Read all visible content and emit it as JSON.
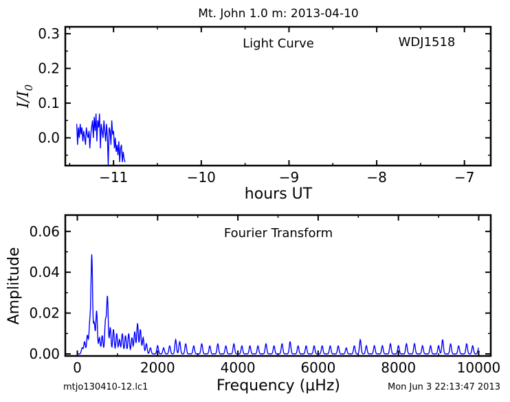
{
  "title": "Mt. John 1.0 m:  2013-04-10",
  "footer_left": "mtjo130410-12.lc1",
  "footer_right": "Mon Jun  3 22:13:47 2013",
  "chart_data": [
    {
      "type": "line",
      "annotation": "Light Curve",
      "object_label": "WDJ1518",
      "xlabel": "hours UT",
      "ylabel": "I/I0",
      "xlim": [
        -11.55,
        -6.7
      ],
      "ylim": [
        -0.08,
        0.32
      ],
      "xticks": [
        -11,
        -10,
        -9,
        -8,
        -7
      ],
      "xtick_labels": [
        "−11",
        "−10",
        "−9",
        "−8",
        "−7"
      ],
      "yticks": [
        0.0,
        0.1,
        0.2,
        0.3
      ],
      "ytick_labels": [
        "0.0",
        "0.1",
        "0.2",
        "0.3"
      ],
      "color": "#0000ff",
      "series": [
        {
          "x": [
            -11.42,
            -11.41,
            -11.4,
            -11.39,
            -11.38,
            -11.37,
            -11.36,
            -11.35,
            -11.34,
            -11.33,
            -11.32,
            -11.31,
            -11.3,
            -11.29,
            -11.28,
            -11.27,
            -11.26,
            -11.25,
            -11.24,
            -11.23,
            -11.22,
            -11.21,
            -11.2,
            -11.19,
            -11.18,
            -11.17,
            -11.16,
            -11.15,
            -11.14,
            -11.13,
            -11.12,
            -11.11,
            -11.1,
            -11.09,
            -11.08,
            -11.07,
            -11.06,
            -11.05,
            -11.04,
            -11.03,
            -11.02,
            -11.01,
            -11.0,
            -10.99,
            -10.98,
            -10.97,
            -10.96,
            -10.95,
            -10.94,
            -10.93,
            -10.92,
            -10.91,
            -10.9,
            -10.89,
            -10.88,
            -10.87
          ],
          "y": [
            0.04,
            -0.02,
            0.03,
            0.0,
            0.04,
            0.01,
            0.03,
            -0.01,
            0.02,
            0.0,
            -0.02,
            0.03,
            0.01,
            0.0,
            0.02,
            -0.03,
            0.01,
            0.03,
            0.05,
            0.0,
            0.06,
            0.02,
            0.07,
            -0.01,
            0.05,
            0.03,
            0.07,
            -0.03,
            0.04,
            0.02,
            0.0,
            0.05,
            0.02,
            -0.01,
            0.04,
            0.0,
            -0.08,
            0.03,
            0.02,
            -0.02,
            0.05,
            0.01,
            0.02,
            -0.03,
            0.0,
            -0.04,
            -0.02,
            -0.05,
            -0.01,
            -0.07,
            -0.03,
            -0.02,
            -0.07,
            -0.04,
            -0.06,
            -0.07
          ]
        }
      ]
    },
    {
      "type": "line",
      "annotation": "Fourier Transform",
      "xlabel": "Frequency (μHz)",
      "ylabel": "Amplitude",
      "xlim": [
        -300,
        10300
      ],
      "ylim": [
        -0.001,
        0.068
      ],
      "xticks": [
        0,
        2000,
        4000,
        6000,
        8000,
        10000
      ],
      "xtick_labels": [
        "0",
        "2000",
        "4000",
        "6000",
        "8000",
        "10000"
      ],
      "yticks": [
        0.0,
        0.02,
        0.04,
        0.06
      ],
      "ytick_labels": [
        "0.00",
        "0.02",
        "0.04",
        "0.06"
      ],
      "color": "#0000ff",
      "peaks": [
        {
          "x": 120,
          "y": 0.003
        },
        {
          "x": 180,
          "y": 0.006
        },
        {
          "x": 250,
          "y": 0.009
        },
        {
          "x": 310,
          "y": 0.015
        },
        {
          "x": 360,
          "y": 0.048
        },
        {
          "x": 420,
          "y": 0.015
        },
        {
          "x": 480,
          "y": 0.021
        },
        {
          "x": 550,
          "y": 0.008
        },
        {
          "x": 620,
          "y": 0.009
        },
        {
          "x": 700,
          "y": 0.016
        },
        {
          "x": 750,
          "y": 0.028
        },
        {
          "x": 820,
          "y": 0.013
        },
        {
          "x": 900,
          "y": 0.012
        },
        {
          "x": 980,
          "y": 0.01
        },
        {
          "x": 1050,
          "y": 0.007
        },
        {
          "x": 1120,
          "y": 0.01
        },
        {
          "x": 1200,
          "y": 0.009
        },
        {
          "x": 1280,
          "y": 0.01
        },
        {
          "x": 1360,
          "y": 0.008
        },
        {
          "x": 1430,
          "y": 0.011
        },
        {
          "x": 1500,
          "y": 0.015
        },
        {
          "x": 1570,
          "y": 0.012
        },
        {
          "x": 1640,
          "y": 0.008
        },
        {
          "x": 1720,
          "y": 0.005
        },
        {
          "x": 1820,
          "y": 0.003
        },
        {
          "x": 2000,
          "y": 0.004
        },
        {
          "x": 2150,
          "y": 0.003
        },
        {
          "x": 2300,
          "y": 0.004
        },
        {
          "x": 2450,
          "y": 0.007
        },
        {
          "x": 2550,
          "y": 0.006
        },
        {
          "x": 2700,
          "y": 0.005
        },
        {
          "x": 2900,
          "y": 0.004
        },
        {
          "x": 3100,
          "y": 0.005
        },
        {
          "x": 3300,
          "y": 0.004
        },
        {
          "x": 3500,
          "y": 0.005
        },
        {
          "x": 3700,
          "y": 0.004
        },
        {
          "x": 3900,
          "y": 0.005
        },
        {
          "x": 4100,
          "y": 0.004
        },
        {
          "x": 4300,
          "y": 0.004
        },
        {
          "x": 4500,
          "y": 0.004
        },
        {
          "x": 4700,
          "y": 0.005
        },
        {
          "x": 4900,
          "y": 0.004
        },
        {
          "x": 5100,
          "y": 0.005
        },
        {
          "x": 5300,
          "y": 0.006
        },
        {
          "x": 5500,
          "y": 0.004
        },
        {
          "x": 5700,
          "y": 0.004
        },
        {
          "x": 5900,
          "y": 0.004
        },
        {
          "x": 6100,
          "y": 0.004
        },
        {
          "x": 6300,
          "y": 0.004
        },
        {
          "x": 6500,
          "y": 0.004
        },
        {
          "x": 6700,
          "y": 0.003
        },
        {
          "x": 6900,
          "y": 0.004
        },
        {
          "x": 7050,
          "y": 0.007
        },
        {
          "x": 7200,
          "y": 0.004
        },
        {
          "x": 7400,
          "y": 0.004
        },
        {
          "x": 7600,
          "y": 0.004
        },
        {
          "x": 7800,
          "y": 0.005
        },
        {
          "x": 8000,
          "y": 0.004
        },
        {
          "x": 8200,
          "y": 0.005
        },
        {
          "x": 8400,
          "y": 0.005
        },
        {
          "x": 8600,
          "y": 0.004
        },
        {
          "x": 8800,
          "y": 0.004
        },
        {
          "x": 9000,
          "y": 0.004
        },
        {
          "x": 9100,
          "y": 0.007
        },
        {
          "x": 9300,
          "y": 0.005
        },
        {
          "x": 9500,
          "y": 0.004
        },
        {
          "x": 9700,
          "y": 0.005
        },
        {
          "x": 9850,
          "y": 0.004
        },
        {
          "x": 10000,
          "y": 0.003
        }
      ]
    }
  ]
}
